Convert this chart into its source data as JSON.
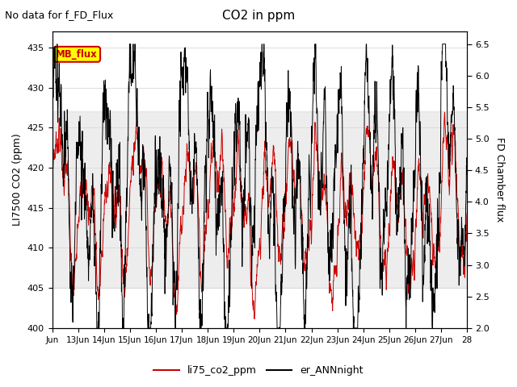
{
  "title": "CO2 in ppm",
  "subtitle": "No data for f_FD_Flux",
  "ylabel_left": "LI7500 CO2 (ppm)",
  "ylabel_right": "FD Chamber flux",
  "ylim_left": [
    400,
    437
  ],
  "ylim_right": [
    2.0,
    6.7
  ],
  "xlim_days": [
    12,
    28
  ],
  "xtick_labels": [
    "Jun",
    "13Jun",
    "14Jun",
    "15Jun",
    "16Jun",
    "17Jun",
    "18Jun",
    "19Jun",
    "20Jun",
    "21Jun",
    "22Jun",
    "23Jun",
    "24Jun",
    "25Jun",
    "26Jun",
    "27Jun",
    "28"
  ],
  "yticks_left": [
    400,
    405,
    410,
    415,
    420,
    425,
    430,
    435
  ],
  "yticks_right": [
    2.0,
    2.5,
    3.0,
    3.5,
    4.0,
    4.5,
    5.0,
    5.5,
    6.0,
    6.5
  ],
  "gray_band": [
    405,
    427
  ],
  "legend_box_label": "MB_flux",
  "legend_box_color": "#ffff00",
  "legend_box_border": "#cc0000",
  "line1_color": "#cc0000",
  "line1_label": "li75_co2_ppm",
  "line2_color": "#000000",
  "line2_label": "er_ANNnight",
  "background_color": "#ffffff",
  "grid_color": "#d8d8d8",
  "fig_width": 6.4,
  "fig_height": 4.8,
  "dpi": 100
}
